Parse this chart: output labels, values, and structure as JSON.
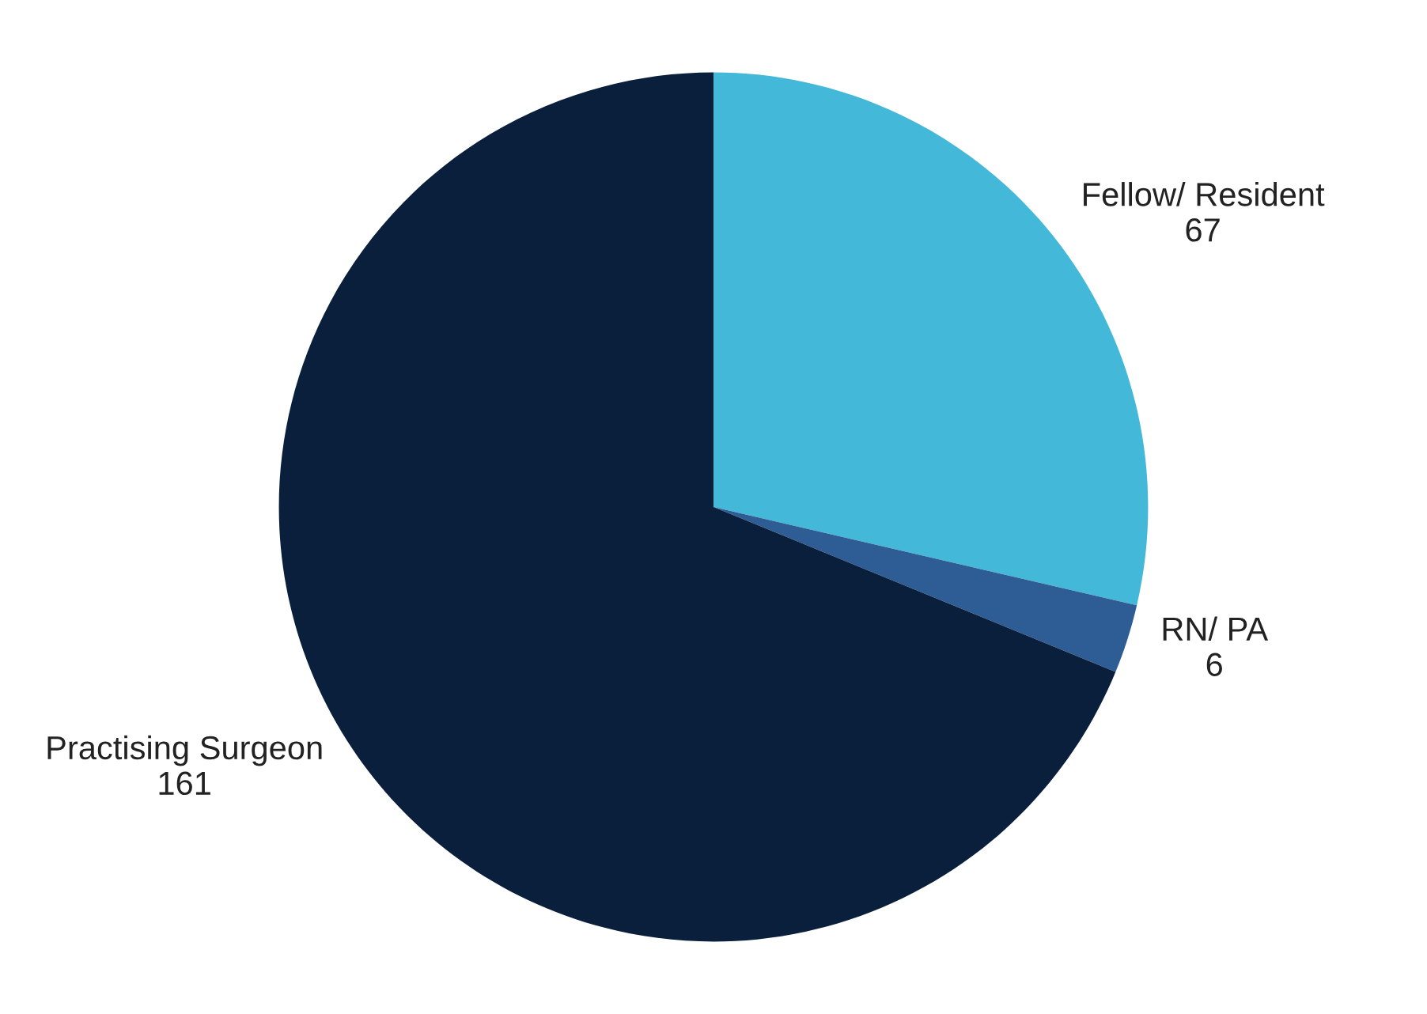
{
  "chart_data": {
    "type": "pie",
    "categories": [
      "Fellow/ Resident",
      "RN/ PA",
      "Practising Surgeon"
    ],
    "values": [
      67,
      6,
      161
    ],
    "colors": [
      "#43b8d8",
      "#2e5d95",
      "#0a1f3c"
    ],
    "data_labels": true
  }
}
